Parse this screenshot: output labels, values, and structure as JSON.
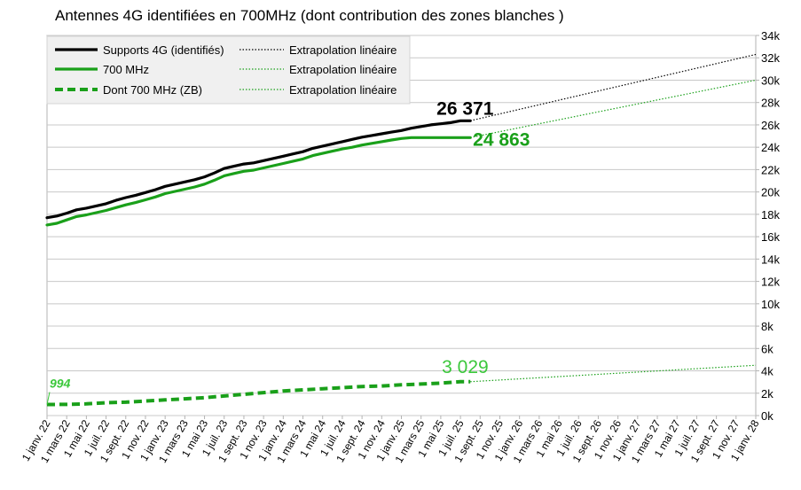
{
  "chart_data": {
    "type": "line",
    "title": "Antennes 4G identifiées en 700MHz (dont contribution des zones blanches )",
    "xlabel": "",
    "ylabel": "",
    "ylim": [
      0,
      34000
    ],
    "x_start": "2022-01-01",
    "x_end": "2028-01-01",
    "x_ticks": [
      "1 janv. 22",
      "1 mars 22",
      "1 mai 22",
      "1 juil. 22",
      "1 sept. 22",
      "1 nov. 22",
      "1 janv. 23",
      "1 mars 23",
      "1 mai 23",
      "1 juil. 23",
      "1 sept. 23",
      "1 nov. 23",
      "1 janv. 24",
      "1 mars 24",
      "1 mai 24",
      "1 juil. 24",
      "1 sept. 24",
      "1 nov. 24",
      "1 janv. 25",
      "1 mars 25",
      "1 mai 25",
      "1 juil. 25",
      "1 sept. 25",
      "1 nov. 25",
      "1 janv. 26",
      "1 mars 26",
      "1 mai 26",
      "1 juil. 26",
      "1 sept. 26",
      "1 nov. 26",
      "1 janv. 27",
      "1 mars 27",
      "1 mai 27",
      "1 juil. 27",
      "1 sept. 27",
      "1 nov. 27",
      "1 janv. 28"
    ],
    "y_ticks": [
      "0k",
      "2k",
      "4k",
      "6k",
      "8k",
      "10k",
      "12k",
      "14k",
      "16k",
      "18k",
      "20k",
      "22k",
      "24k",
      "26k",
      "28k",
      "30k",
      "32k",
      "34k"
    ],
    "y_tick_values": [
      0,
      2000,
      4000,
      6000,
      8000,
      10000,
      12000,
      14000,
      16000,
      18000,
      20000,
      22000,
      24000,
      26000,
      28000,
      30000,
      32000,
      34000
    ],
    "grid": true,
    "legend_position": "top-left",
    "series": [
      {
        "name": "Supports 4G (identifiés)",
        "color": "#000000",
        "style": "solid",
        "x_months": [
          0,
          1,
          2,
          3,
          4,
          5,
          6,
          7,
          8,
          9,
          10,
          11,
          12,
          13,
          14,
          15,
          16,
          17,
          18,
          19,
          20,
          21,
          22,
          23,
          24,
          25,
          26,
          27,
          28,
          29,
          30,
          31,
          32,
          33,
          34,
          35,
          36,
          37,
          38,
          39,
          40,
          41,
          42,
          43
        ],
        "values": [
          17700,
          17850,
          18100,
          18400,
          18550,
          18750,
          18950,
          19250,
          19500,
          19700,
          19950,
          20200,
          20500,
          20700,
          20900,
          21100,
          21350,
          21700,
          22100,
          22300,
          22500,
          22600,
          22800,
          23000,
          23200,
          23400,
          23600,
          23900,
          24100,
          24300,
          24500,
          24700,
          24900,
          25050,
          25200,
          25350,
          25500,
          25700,
          25850,
          26000,
          26100,
          26200,
          26371,
          26371
        ]
      },
      {
        "name": "700 MHz",
        "color": "#1aa01a",
        "style": "solid",
        "x_months": [
          0,
          1,
          2,
          3,
          4,
          5,
          6,
          7,
          8,
          9,
          10,
          11,
          12,
          13,
          14,
          15,
          16,
          17,
          18,
          19,
          20,
          21,
          22,
          23,
          24,
          25,
          26,
          27,
          28,
          29,
          30,
          31,
          32,
          33,
          34,
          35,
          36,
          37,
          38,
          39,
          40,
          41,
          42,
          43
        ],
        "values": [
          17050,
          17200,
          17500,
          17800,
          17950,
          18150,
          18350,
          18600,
          18850,
          19050,
          19300,
          19550,
          19850,
          20050,
          20250,
          20450,
          20700,
          21050,
          21450,
          21650,
          21850,
          21950,
          22150,
          22350,
          22550,
          22750,
          22950,
          23250,
          23450,
          23650,
          23850,
          24000,
          24200,
          24350,
          24500,
          24650,
          24780,
          24863,
          24863,
          24863,
          24863,
          24863,
          24863,
          24863
        ]
      },
      {
        "name": "Dont 700 MHz (ZB)",
        "color": "#1aa01a",
        "style": "dashed",
        "x_months": [
          0,
          2,
          4,
          6,
          8,
          10,
          12,
          14,
          16,
          18,
          20,
          22,
          24,
          26,
          28,
          30,
          32,
          34,
          36,
          38,
          40,
          42,
          43
        ],
        "values": [
          994,
          1000,
          1050,
          1150,
          1200,
          1300,
          1400,
          1500,
          1600,
          1750,
          1900,
          2050,
          2200,
          2300,
          2400,
          2500,
          2600,
          2650,
          2750,
          2820,
          2900,
          3029,
          3029
        ]
      }
    ],
    "extrapolations": [
      {
        "name": "Extrapolation linéaire",
        "color": "#000000",
        "from": [
          43,
          26371
        ],
        "to": [
          72,
          32300
        ]
      },
      {
        "name": "Extrapolation linéaire",
        "color": "#1aa01a",
        "from": [
          43,
          24863
        ],
        "to": [
          72,
          30000
        ]
      },
      {
        "name": "Extrapolation linéaire",
        "color": "#1aa01a",
        "from": [
          43,
          3029
        ],
        "to": [
          72,
          4500
        ]
      }
    ],
    "annotations": [
      {
        "text": "26 371",
        "color": "#000000"
      },
      {
        "text": "24 863",
        "color": "#1aa01a"
      },
      {
        "text": "3 029",
        "color": "#3cc83c"
      },
      {
        "text": "994",
        "color": "#3cc83c"
      }
    ]
  }
}
